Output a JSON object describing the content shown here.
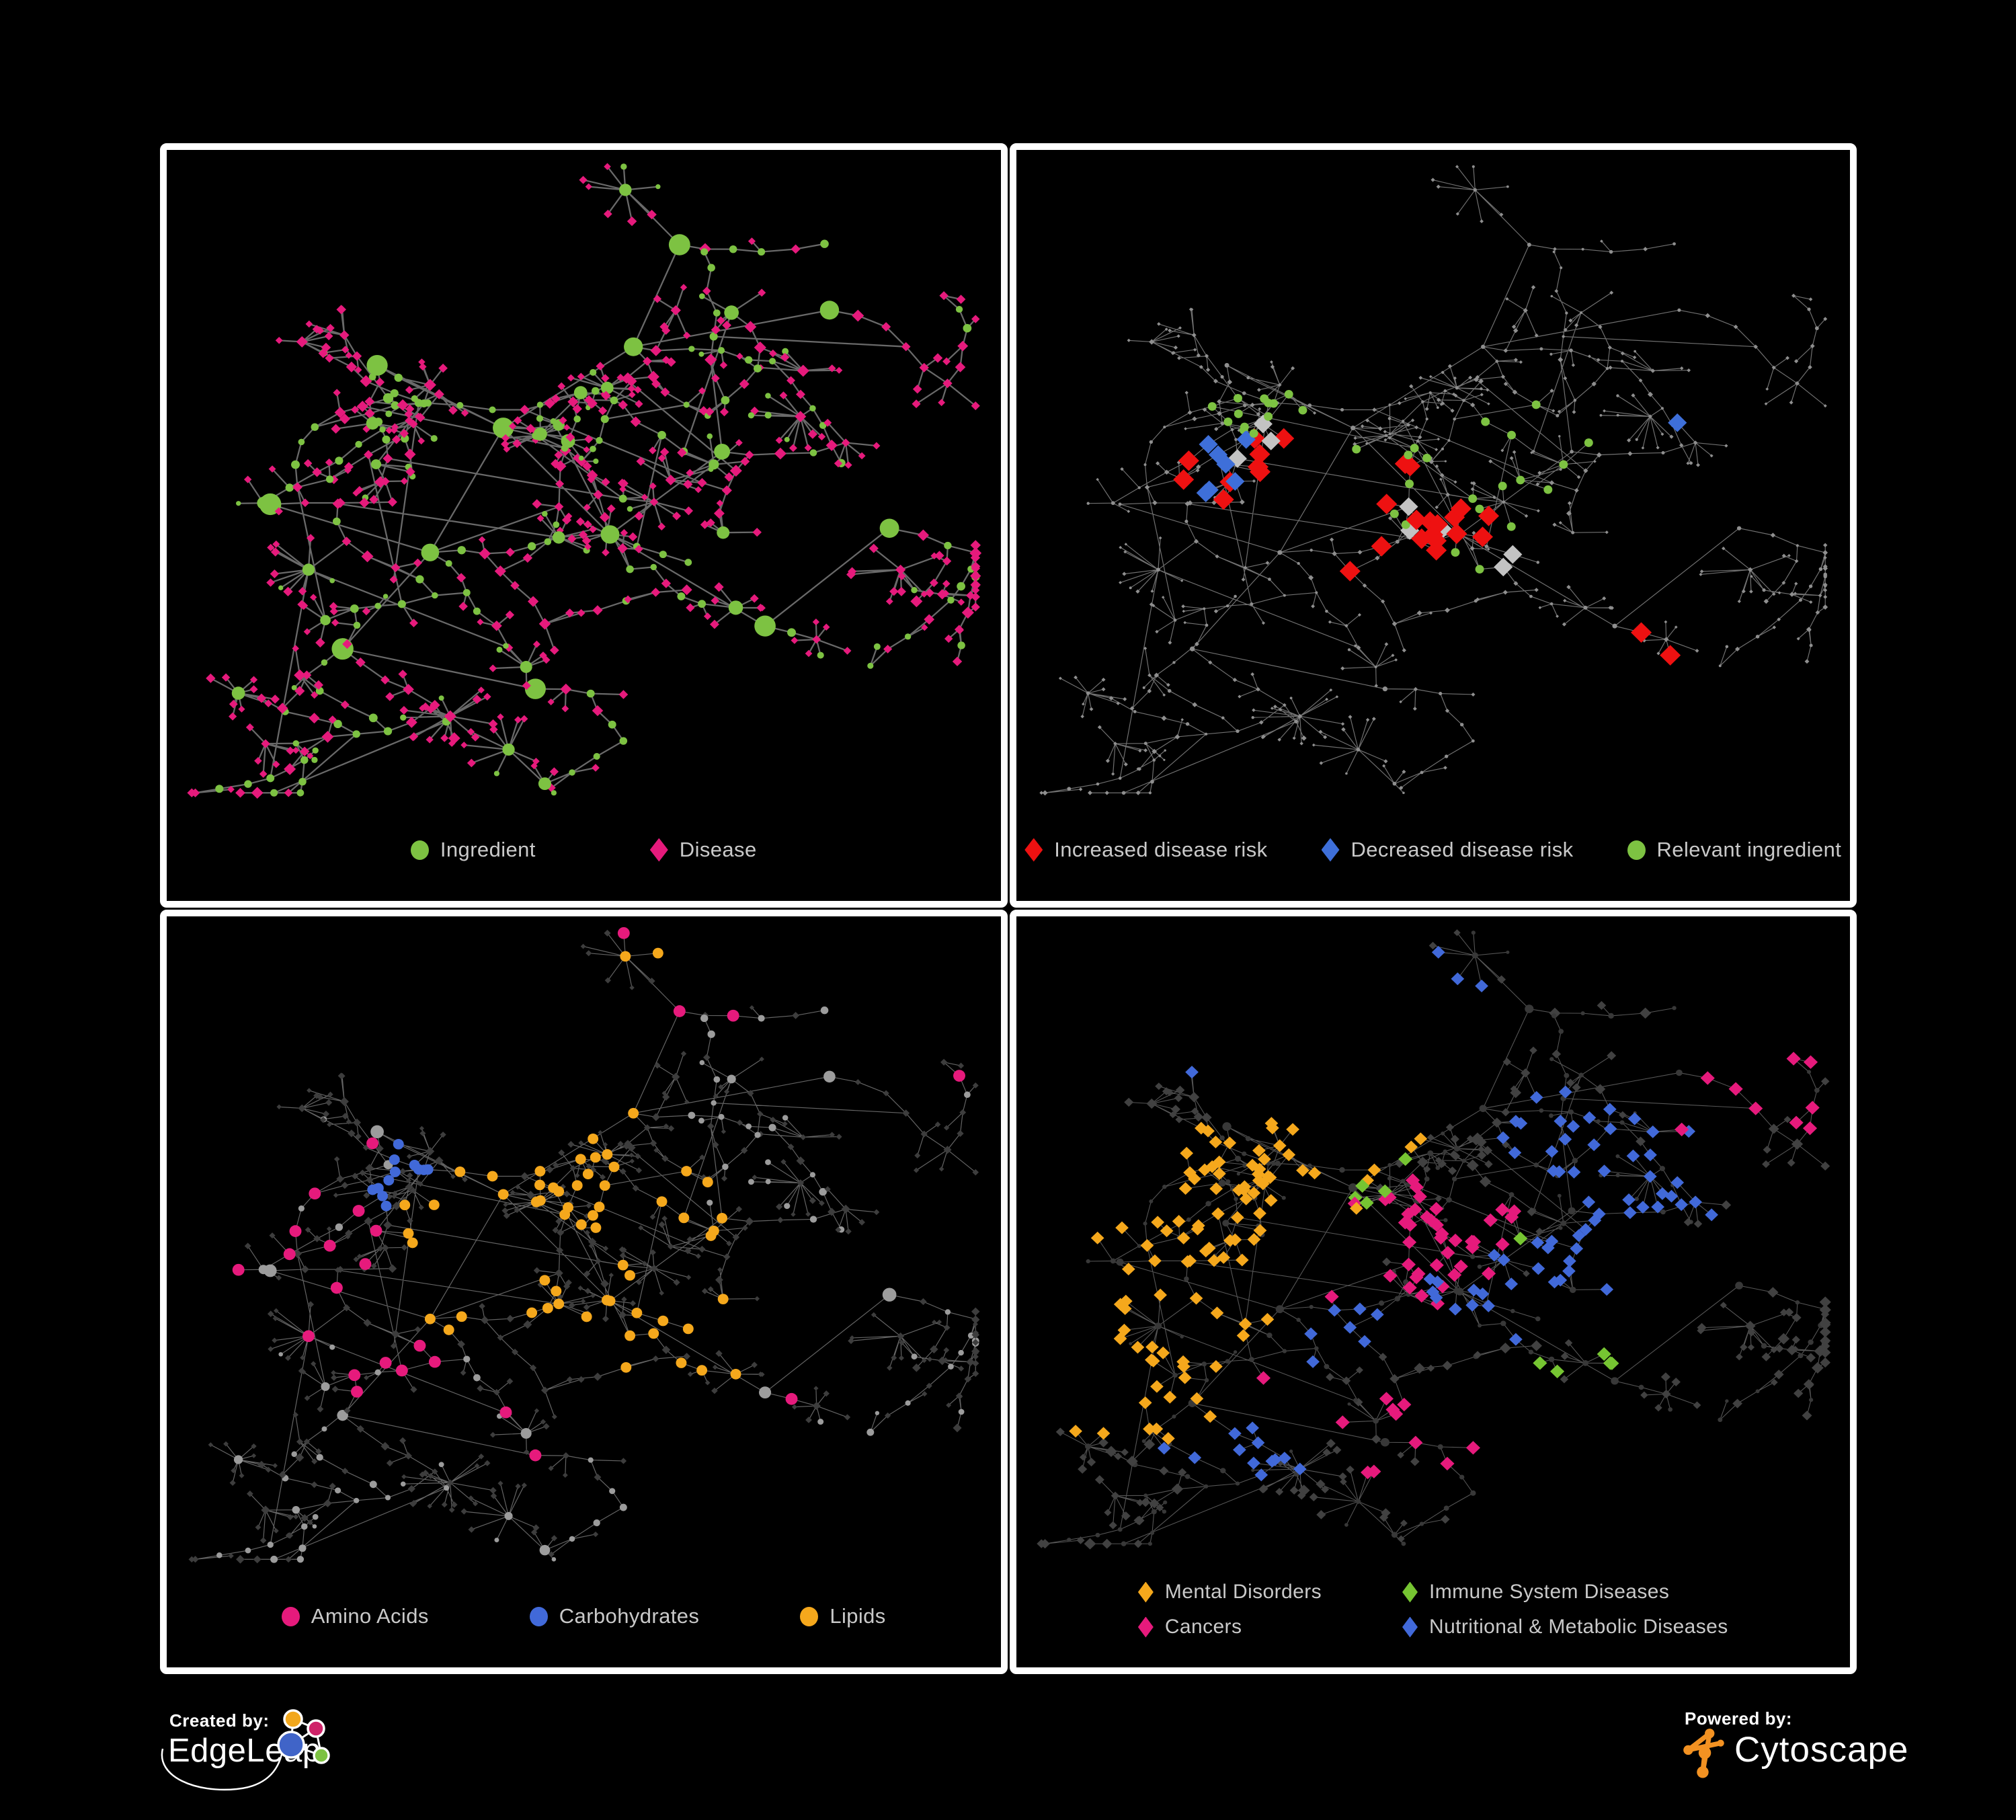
{
  "figure": {
    "background": "#000000",
    "panel_border": "#ffffff",
    "legend_text_color": "#c9c9c9"
  },
  "branding": {
    "created_by": {
      "label": "Created by:",
      "name": "EdgeLeap"
    },
    "edgeleap_logo": {
      "orange": "#f2a71c",
      "pink": "#cf2369",
      "blue": "#4064c8",
      "green": "#7dc242"
    },
    "powered_by": {
      "label": "Powered by:",
      "name": "Cytoscape"
    },
    "cytoscape_logo": {
      "orange": "#f39222"
    }
  },
  "panels": [
    {
      "name": "ingredient-disease-network",
      "legend": [
        {
          "label": "Ingredient",
          "color": "#7dc242",
          "shape": "circle"
        },
        {
          "label": "Disease",
          "color": "#e61a7c",
          "shape": "diamond"
        }
      ],
      "network": {
        "seed": 12,
        "nodes": 560,
        "edge": {
          "color": "#6f6f6f",
          "width": 2.3,
          "opacity": 0.95
        },
        "base": {
          "circle": {
            "color": "#7dc242",
            "r": [
              4.5,
              14
            ]
          },
          "diamond": {
            "color": "#e61a7c",
            "r": [
              4.5,
              6.5
            ]
          }
        },
        "overlays": []
      }
    },
    {
      "name": "disease-risk-network",
      "legend": [
        {
          "label": "Increased disease risk",
          "color": "#ee1111",
          "shape": "diamond"
        },
        {
          "label": "Decreased disease risk",
          "color": "#3e6fd9",
          "shape": "diamond"
        },
        {
          "label": "Relevant ingredient",
          "color": "#7dc242",
          "shape": "circle"
        }
      ],
      "network": {
        "seed": 12,
        "nodes": 560,
        "edge": {
          "color": "#8c8c8c",
          "width": 1.2,
          "opacity": 0.8
        },
        "base": {
          "circle": {
            "color": "#8f8f8f",
            "r": [
              2.0,
              3.0
            ]
          },
          "diamond": {
            "color": "#8f8f8f",
            "r": [
              2.0,
              3.0
            ]
          }
        },
        "overlays": [
          {
            "shape": "diamond",
            "target": "any",
            "color": "#ee1111",
            "count": 28,
            "size": 11,
            "focus": [
              [
                0.33,
                0.47
              ],
              [
                0.45,
                0.52
              ],
              [
                0.52,
                0.57
              ],
              [
                0.44,
                0.63
              ],
              [
                0.25,
                0.5
              ],
              [
                0.72,
                0.77
              ]
            ],
            "spread": 0.07
          },
          {
            "shape": "diamond",
            "target": "any",
            "color": "#3e6fd9",
            "count": 8,
            "size": 10,
            "focus": [
              [
                0.26,
                0.48
              ],
              [
                0.81,
                0.36
              ]
            ],
            "spread": 0.045
          },
          {
            "shape": "diamond",
            "target": "any",
            "color": "#c3c3c3",
            "count": 8,
            "size": 10,
            "focus": [
              [
                0.3,
                0.45
              ],
              [
                0.5,
                0.55
              ],
              [
                0.6,
                0.62
              ]
            ],
            "spread": 0.09
          },
          {
            "shape": "circle",
            "target": "any",
            "color": "#7dc242",
            "count": 34,
            "size": 6.5,
            "focus": [
              [
                0.28,
                0.42
              ],
              [
                0.45,
                0.5
              ],
              [
                0.55,
                0.58
              ],
              [
                0.66,
                0.7
              ],
              [
                0.62,
                0.45
              ]
            ],
            "spread": 0.09
          }
        ]
      }
    },
    {
      "name": "nutrient-class-network",
      "legend": [
        {
          "label": "Amino Acids",
          "color": "#e61a7c",
          "shape": "circle"
        },
        {
          "label": "Carbohydrates",
          "color": "#4169d9",
          "shape": "circle"
        },
        {
          "label": "Lipids",
          "color": "#f5a81c",
          "shape": "circle"
        }
      ],
      "network": {
        "seed": 12,
        "nodes": 560,
        "edge": {
          "color": "#9a9a9a",
          "width": 1.2,
          "opacity": 0.65
        },
        "base": {
          "circle": {
            "color": "#9c9c9c",
            "r": [
              4,
              9.5
            ]
          },
          "diamond": {
            "color": "#3d3d3d",
            "r": [
              3.2,
              4.8
            ]
          }
        },
        "overlays": [
          {
            "shape": "circle",
            "target": "circle",
            "color": "#f5a81c",
            "count": 60,
            "size": 8,
            "focus": [
              [
                0.5,
                0.4
              ],
              [
                0.44,
                0.22
              ],
              [
                0.4,
                0.52
              ],
              [
                0.65,
                0.56
              ],
              [
                0.46,
                0.13
              ]
            ],
            "spread": 0.07
          },
          {
            "shape": "circle",
            "target": "circle",
            "color": "#4169d9",
            "count": 12,
            "size": 8,
            "focus": [
              [
                0.5,
                0.4
              ],
              [
                0.38,
                0.4
              ],
              [
                0.28,
                0.06
              ]
            ],
            "spread": 0.06
          },
          {
            "shape": "circle",
            "target": "circle",
            "color": "#e61a7c",
            "count": 24,
            "size": 9,
            "focus": [
              [
                0.2,
                0.2
              ],
              [
                0.25,
                0.45
              ],
              [
                0.3,
                0.65
              ],
              [
                0.55,
                0.72
              ],
              [
                0.68,
                0.68
              ],
              [
                0.88,
                0.28
              ],
              [
                0.13,
                0.5
              ],
              [
                0.64,
                0.04
              ]
            ],
            "spread": 0.12
          }
        ]
      }
    },
    {
      "name": "disease-class-network",
      "legend": [
        {
          "label": "Mental Disorders",
          "color": "#f5a81c",
          "shape": "diamond"
        },
        {
          "label": "Cancers",
          "color": "#e61a7c",
          "shape": "diamond"
        },
        {
          "label": "Immune System Diseases",
          "color": "#76c532",
          "shape": "diamond"
        },
        {
          "label": "Nutritional & Metabolic Diseases",
          "color": "#4169d9",
          "shape": "diamond"
        }
      ],
      "network": {
        "seed": 12,
        "nodes": 560,
        "edge": {
          "color": "#8f8f8f",
          "width": 1.1,
          "opacity": 0.6
        },
        "base": {
          "circle": {
            "color": "#383838",
            "r": [
              3,
              6
            ]
          },
          "diamond": {
            "color": "#414141",
            "r": [
              4.5,
              6.5
            ]
          }
        },
        "overlays": [
          {
            "shape": "diamond",
            "target": "diamond",
            "color": "#f5a81c",
            "count": 95,
            "size": 7,
            "focus": [
              [
                0.2,
                0.46
              ],
              [
                0.25,
                0.54
              ],
              [
                0.15,
                0.5
              ],
              [
                0.3,
                0.42
              ],
              [
                0.13,
                0.7
              ],
              [
                0.38,
                0.3
              ]
            ],
            "spread": 0.065
          },
          {
            "shape": "diamond",
            "target": "diamond",
            "color": "#e61a7c",
            "count": 60,
            "size": 7.5,
            "focus": [
              [
                0.42,
                0.5
              ],
              [
                0.47,
                0.55
              ],
              [
                0.52,
                0.48
              ],
              [
                0.88,
                0.27
              ],
              [
                0.48,
                0.8
              ],
              [
                0.26,
                0.7
              ]
            ],
            "spread": 0.07
          },
          {
            "shape": "diamond",
            "target": "diamond",
            "color": "#4169d9",
            "count": 85,
            "size": 7,
            "focus": [
              [
                0.48,
                0.11
              ],
              [
                0.16,
                0.16
              ],
              [
                0.56,
                0.58
              ],
              [
                0.68,
                0.35
              ],
              [
                0.7,
                0.5
              ],
              [
                0.26,
                0.8
              ],
              [
                0.36,
                0.62
              ],
              [
                0.8,
                0.38
              ]
            ],
            "spread": 0.06
          },
          {
            "shape": "diamond",
            "target": "diamond",
            "color": "#76c532",
            "count": 11,
            "size": 7.5,
            "focus": [
              [
                0.4,
                0.3
              ],
              [
                0.37,
                0.47
              ],
              [
                0.55,
                0.54
              ],
              [
                0.3,
                0.72
              ],
              [
                0.68,
                0.75
              ]
            ],
            "spread": 0.16
          }
        ]
      }
    }
  ]
}
